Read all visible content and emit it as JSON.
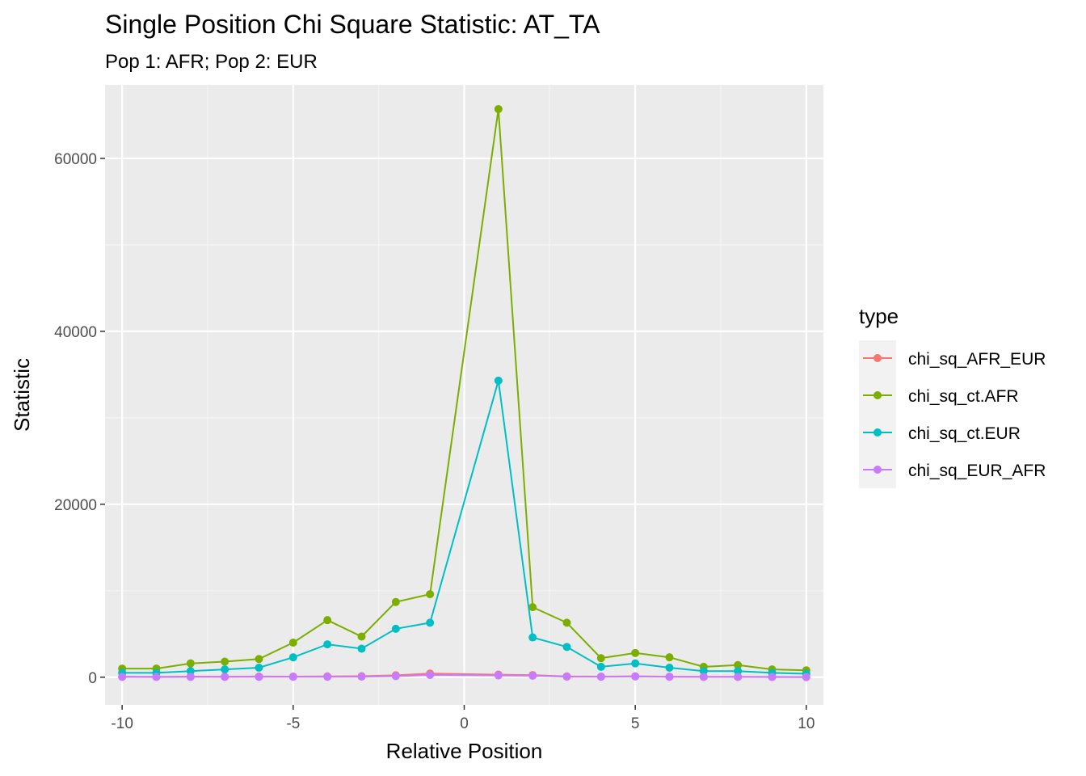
{
  "chart_data": {
    "type": "line",
    "title": "Single Position Chi Square Statistic: AT_TA",
    "subtitle": "Pop 1: AFR; Pop 2: EUR",
    "xlabel": "Relative Position",
    "ylabel": "Statistic",
    "xlim": [
      -10.5,
      10.5
    ],
    "ylim": [
      -3200,
      68500
    ],
    "x_ticks": [
      -10,
      -5,
      0,
      5,
      10
    ],
    "x_tick_labels": [
      "-10",
      "-5",
      "0",
      "5",
      "10"
    ],
    "y_ticks": [
      0,
      20000,
      40000,
      60000
    ],
    "y_tick_labels": [
      "0",
      "20000",
      "40000",
      "60000"
    ],
    "grid": true,
    "legend_title": "type",
    "legend_position": "right",
    "x": [
      -10,
      -9,
      -8,
      -7,
      -6,
      -5,
      -4,
      -3,
      -2,
      -1,
      1,
      2,
      3,
      4,
      5,
      6,
      7,
      8,
      9,
      10
    ],
    "series": [
      {
        "name": "chi_sq_AFR_EUR",
        "color": "#F8766D",
        "values": [
          60,
          50,
          70,
          60,
          80,
          70,
          90,
          120,
          220,
          420,
          300,
          250,
          90,
          70,
          110,
          60,
          40,
          40,
          30,
          20
        ]
      },
      {
        "name": "chi_sq_ct.AFR",
        "color": "#7CAE00",
        "values": [
          1000,
          1000,
          1600,
          1800,
          2100,
          4000,
          6600,
          4700,
          8700,
          9600,
          65700,
          8100,
          6300,
          2200,
          2800,
          2300,
          1200,
          1400,
          900,
          800
        ]
      },
      {
        "name": "chi_sq_ct.EUR",
        "color": "#00BFC4",
        "values": [
          500,
          500,
          700,
          900,
          1100,
          2300,
          3800,
          3300,
          5600,
          6300,
          34300,
          4600,
          3500,
          1200,
          1600,
          1100,
          700,
          700,
          500,
          400
        ]
      },
      {
        "name": "chi_sq_EUR_AFR",
        "color": "#C77CFF",
        "values": [
          30,
          20,
          30,
          30,
          40,
          40,
          50,
          60,
          120,
          260,
          200,
          170,
          60,
          50,
          80,
          40,
          30,
          30,
          20,
          10
        ]
      }
    ]
  }
}
